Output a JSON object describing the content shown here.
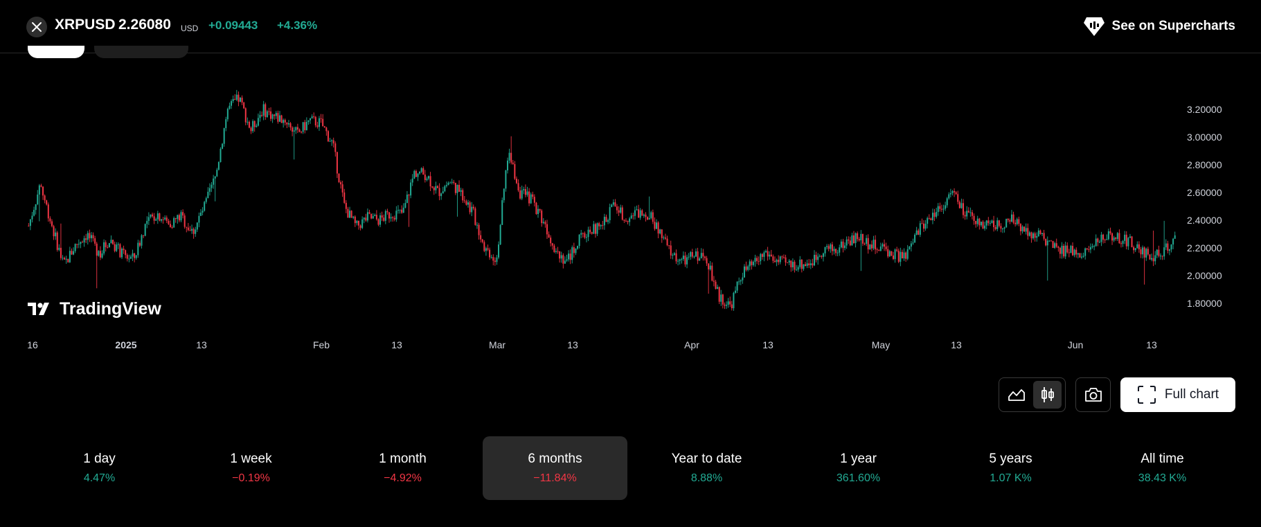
{
  "header": {
    "symbol": "XRPUSD",
    "price": "2.26080",
    "currency": "USD",
    "change": "+0.09443",
    "change_pct": "+4.36%",
    "supercharts_label": "See on Supercharts"
  },
  "chart_data": {
    "type": "candlestick",
    "y_ticks": [
      "3.20000",
      "3.00000",
      "2.80000",
      "2.60000",
      "2.40000",
      "2.20000",
      "2.00000",
      "1.80000"
    ],
    "x_ticks": [
      "16",
      "2025",
      "13",
      "Feb",
      "13",
      "Mar",
      "13",
      "Apr",
      "13",
      "May",
      "13",
      "Jun",
      "13"
    ],
    "watermark": "TradingView",
    "colors": {
      "up": "#22ab94",
      "down": "#f23645"
    },
    "series": [
      {
        "x": "Dec 15",
        "y": 2.36
      },
      {
        "x": "Dec 17",
        "y": 2.66
      },
      {
        "x": "Dec 19",
        "y": 2.36
      },
      {
        "x": "Dec 20",
        "y": 2.07
      },
      {
        "x": "Dec 22",
        "y": 2.22
      },
      {
        "x": "Dec 24",
        "y": 2.3
      },
      {
        "x": "Dec 26",
        "y": 2.16
      },
      {
        "x": "Dec 28",
        "y": 2.26
      },
      {
        "x": "Dec 30",
        "y": 2.15
      },
      {
        "x": "Jan 1",
        "y": 2.12
      },
      {
        "x": "Jan 3",
        "y": 2.37
      },
      {
        "x": "Jan 5",
        "y": 2.45
      },
      {
        "x": "Jan 7",
        "y": 2.37
      },
      {
        "x": "Jan 9",
        "y": 2.43
      },
      {
        "x": "Jan 11",
        "y": 2.31
      },
      {
        "x": "Jan 13",
        "y": 2.49
      },
      {
        "x": "Jan 14",
        "y": 2.72
      },
      {
        "x": "Jan 16",
        "y": 3.2
      },
      {
        "x": "Jan 18",
        "y": 3.28
      },
      {
        "x": "Jan 19",
        "y": 3.05
      },
      {
        "x": "Jan 21",
        "y": 3.2
      },
      {
        "x": "Jan 23",
        "y": 3.15
      },
      {
        "x": "Jan 25",
        "y": 3.12
      },
      {
        "x": "Jan 27",
        "y": 3.02
      },
      {
        "x": "Jan 28",
        "y": 3.12
      },
      {
        "x": "Jan 30",
        "y": 3.1
      },
      {
        "x": "Feb 1",
        "y": 2.95
      },
      {
        "x": "Feb 3",
        "y": 2.5
      },
      {
        "x": "Feb 5",
        "y": 2.35
      },
      {
        "x": "Feb 7",
        "y": 2.42
      },
      {
        "x": "Feb 9",
        "y": 2.4
      },
      {
        "x": "Feb 11",
        "y": 2.45
      },
      {
        "x": "Feb 13",
        "y": 2.45
      },
      {
        "x": "Feb 14",
        "y": 2.75
      },
      {
        "x": "Feb 16",
        "y": 2.73
      },
      {
        "x": "Feb 18",
        "y": 2.6
      },
      {
        "x": "Feb 20",
        "y": 2.68
      },
      {
        "x": "Feb 22",
        "y": 2.6
      },
      {
        "x": "Feb 24",
        "y": 2.45
      },
      {
        "x": "Feb 26",
        "y": 2.2
      },
      {
        "x": "Feb 28",
        "y": 2.12
      },
      {
        "x": "Mar 2",
        "y": 2.9
      },
      {
        "x": "Mar 3",
        "y": 2.6
      },
      {
        "x": "Mar 5",
        "y": 2.55
      },
      {
        "x": "Mar 7",
        "y": 2.4
      },
      {
        "x": "Mar 9",
        "y": 2.2
      },
      {
        "x": "Mar 11",
        "y": 2.1
      },
      {
        "x": "Mar 13",
        "y": 2.25
      },
      {
        "x": "Mar 15",
        "y": 2.33
      },
      {
        "x": "Mar 17",
        "y": 2.35
      },
      {
        "x": "Mar 19",
        "y": 2.52
      },
      {
        "x": "Mar 21",
        "y": 2.42
      },
      {
        "x": "Mar 23",
        "y": 2.45
      },
      {
        "x": "Mar 25",
        "y": 2.45
      },
      {
        "x": "Mar 27",
        "y": 2.3
      },
      {
        "x": "Mar 29",
        "y": 2.15
      },
      {
        "x": "Mar 31",
        "y": 2.1
      },
      {
        "x": "Apr 2",
        "y": 2.15
      },
      {
        "x": "Apr 4",
        "y": 2.12
      },
      {
        "x": "Apr 6",
        "y": 1.85
      },
      {
        "x": "Apr 7",
        "y": 1.78
      },
      {
        "x": "Apr 9",
        "y": 2.02
      },
      {
        "x": "Apr 11",
        "y": 2.08
      },
      {
        "x": "Apr 13",
        "y": 2.17
      },
      {
        "x": "Apr 15",
        "y": 2.1
      },
      {
        "x": "Apr 17",
        "y": 2.08
      },
      {
        "x": "Apr 19",
        "y": 2.08
      },
      {
        "x": "Apr 21",
        "y": 2.1
      },
      {
        "x": "Apr 23",
        "y": 2.2
      },
      {
        "x": "Apr 25",
        "y": 2.18
      },
      {
        "x": "Apr 27",
        "y": 2.25
      },
      {
        "x": "Apr 29",
        "y": 2.28
      },
      {
        "x": "May 1",
        "y": 2.22
      },
      {
        "x": "May 3",
        "y": 2.2
      },
      {
        "x": "May 5",
        "y": 2.15
      },
      {
        "x": "May 7",
        "y": 2.13
      },
      {
        "x": "May 9",
        "y": 2.32
      },
      {
        "x": "May 11",
        "y": 2.42
      },
      {
        "x": "May 13",
        "y": 2.5
      },
      {
        "x": "May 14",
        "y": 2.6
      },
      {
        "x": "May 16",
        "y": 2.45
      },
      {
        "x": "May 18",
        "y": 2.38
      },
      {
        "x": "May 20",
        "y": 2.38
      },
      {
        "x": "May 22",
        "y": 2.36
      },
      {
        "x": "May 24",
        "y": 2.4
      },
      {
        "x": "May 26",
        "y": 2.35
      },
      {
        "x": "May 28",
        "y": 2.3
      },
      {
        "x": "May 30",
        "y": 2.25
      },
      {
        "x": "Jun 1",
        "y": 2.17
      },
      {
        "x": "Jun 3",
        "y": 2.18
      },
      {
        "x": "Jun 5",
        "y": 2.17
      },
      {
        "x": "Jun 7",
        "y": 2.2
      },
      {
        "x": "Jun 9",
        "y": 2.3
      },
      {
        "x": "Jun 11",
        "y": 2.28
      },
      {
        "x": "Jun 13",
        "y": 2.25
      },
      {
        "x": "Jun 14",
        "y": 2.18
      },
      {
        "x": "Jun 16",
        "y": 2.14
      },
      {
        "x": "Jun 18",
        "y": 2.17
      },
      {
        "x": "Jun 19",
        "y": 2.26
      }
    ]
  },
  "toolbar": {
    "area_icon": "area-chart-icon",
    "candles_icon": "candlestick-icon",
    "snapshot_icon": "camera-icon",
    "fullchart_icon": "fullscreen-icon",
    "fullchart_label": "Full chart"
  },
  "periods": [
    {
      "label": "1 day",
      "value": "4.47%",
      "dir": "up"
    },
    {
      "label": "1 week",
      "value": "−0.19%",
      "dir": "down"
    },
    {
      "label": "1 month",
      "value": "−4.92%",
      "dir": "down"
    },
    {
      "label": "6 months",
      "value": "−11.84%",
      "dir": "down",
      "active": true
    },
    {
      "label": "Year to date",
      "value": "8.88%",
      "dir": "up"
    },
    {
      "label": "1 year",
      "value": "361.60%",
      "dir": "up"
    },
    {
      "label": "5 years",
      "value": "1.07 K%",
      "dir": "up"
    },
    {
      "label": "All time",
      "value": "38.43 K%",
      "dir": "up"
    }
  ]
}
